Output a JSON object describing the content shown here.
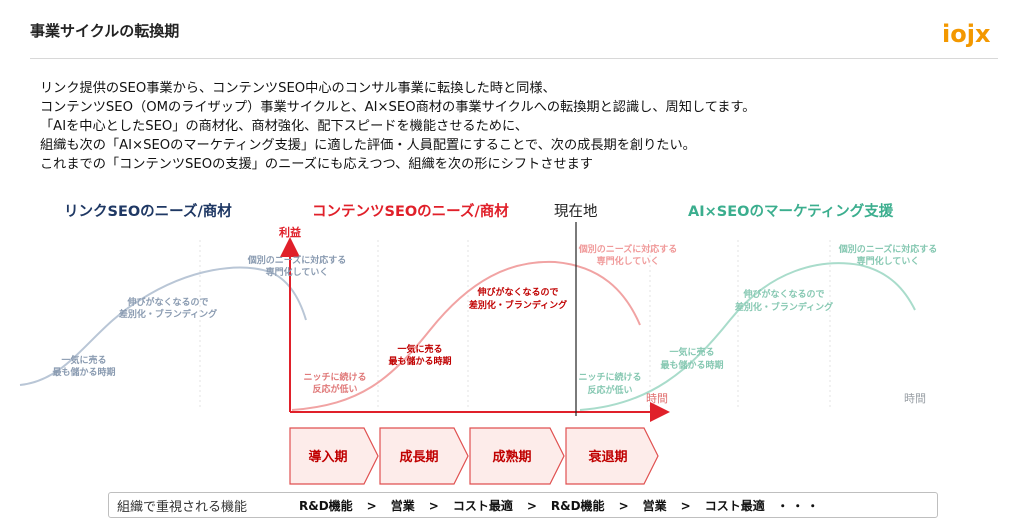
{
  "header": {
    "title": "事業サイクルの転換期"
  },
  "logo": {
    "text": "iojx",
    "color": "#f39800"
  },
  "intro_lines": [
    "リンク提供のSEO事業から、コンテンツSEO中心のコンサル事業に転換した時と同様、",
    "コンテンツSEO（OMのライザップ）事業サイクルと、AI×SEO商材の事業サイクルへの転換期と認識し、周知してます。",
    "「AIを中心としたSEO」の商材化、商材強化、配下スピードを機能させるために、",
    "組織も次の「AI×SEOのマーケティング支援」に適した評価・人員配置にすることで、次の成長期を創りたい。",
    "これまでの「コンテンツSEOの支援」のニーズにも応えつつ、組織を次の形にシフトさせます"
  ],
  "phases": {
    "link": {
      "label": "リンクSEOのニーズ/商材",
      "color": "#1f3864"
    },
    "content": {
      "label": "コンテンツSEOのニーズ/商材",
      "color": "#e0202a"
    },
    "current": {
      "label": "現在地",
      "color": "#222222"
    },
    "ai": {
      "label": "AI×SEOのマーケティング支援",
      "color": "#3bae8e"
    }
  },
  "axes": {
    "y_label": "利益",
    "x_label_1": "時間",
    "x_label_2": "時間"
  },
  "curve_annotations": {
    "link": {
      "a1": "一気に売る",
      "a2": "最も儲かる時期",
      "b1": "伸びがなくなるので",
      "b2": "差別化・ブランディング",
      "c1": "個別のニーズに対応する",
      "c2": "専門化していく"
    },
    "content": {
      "n1": "ニッチに続ける",
      "n2": "反応が低い",
      "a1": "一気に売る",
      "a2": "最も儲かる時期",
      "b1": "伸びがなくなるので",
      "b2": "差別化・ブランディング",
      "c1": "個別のニーズに対応する",
      "c2": "専門化していく"
    },
    "ai": {
      "n1": "ニッチに続ける",
      "n2": "反応が低い",
      "a1": "一気に売る",
      "a2": "最も儲かる時期",
      "b1": "伸びがなくなるので",
      "b2": "差別化・ブランディング",
      "c1": "個別のニーズに対応する",
      "c2": "専門化していく"
    }
  },
  "stages": [
    "導入期",
    "成長期",
    "成熟期",
    "衰退期"
  ],
  "functions": {
    "label": "組織で重視される機能",
    "items": [
      "R&D機能",
      "営業",
      "コスト最適",
      "R&D機能",
      "営業",
      "コスト最適"
    ],
    "separator": ">",
    "ellipsis": "・・・"
  },
  "colors": {
    "red": "#e0202a",
    "pink": "#f1a3a3",
    "gray": "#a8b8cc",
    "teal": "#9fd8c6",
    "stage_border": "#e05050",
    "stage_fill": "#fde9e7"
  }
}
